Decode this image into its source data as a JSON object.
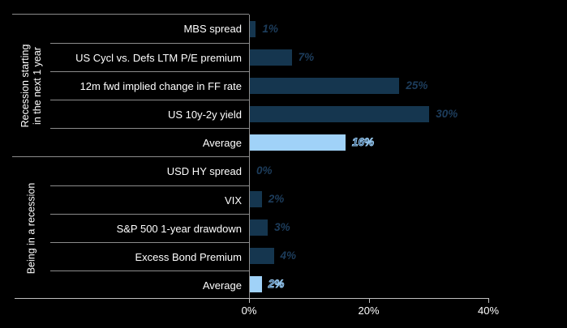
{
  "chart_data": {
    "type": "bar",
    "orientation": "horizontal",
    "title": "",
    "xlabel": "",
    "xlim": [
      0,
      40
    ],
    "grid": false,
    "legend": false,
    "x_ticks": [
      {
        "label": "0%",
        "value": 0
      },
      {
        "label": "20%",
        "value": 20
      },
      {
        "label": "40%",
        "value": 40
      }
    ],
    "colors": {
      "background": "#000000",
      "bar": "#15364F",
      "average_bar": "#A0D2F8",
      "value_label": "#1D3D5C",
      "average_value_fill": "#17365C",
      "average_value_stroke": "#9FD2F9",
      "separator_line": "#8C8C8C",
      "axis_line": "#BFBFBF",
      "label_text": "#FFFFFF"
    },
    "groups": [
      {
        "label": "Recession starting\nin the next 1 year",
        "rows": [
          {
            "label": "MBS spread",
            "value": 1,
            "display": "1%",
            "average": false
          },
          {
            "label": "US Cycl vs. Defs LTM P/E premium",
            "value": 7,
            "display": "7%",
            "average": false
          },
          {
            "label": "12m fwd implied change in FF rate",
            "value": 25,
            "display": "25%",
            "average": false
          },
          {
            "label": "US 10y-2y yield",
            "value": 30,
            "display": "30%",
            "average": false
          },
          {
            "label": "Average",
            "value": 16,
            "display": "16%",
            "average": true
          }
        ]
      },
      {
        "label": "Being in a recession",
        "rows": [
          {
            "label": "USD HY spread",
            "value": 0,
            "display": "0%",
            "average": false
          },
          {
            "label": "VIX",
            "value": 2,
            "display": "2%",
            "average": false
          },
          {
            "label": "S&P 500 1-year drawdown",
            "value": 3,
            "display": "3%",
            "average": false
          },
          {
            "label": "Excess Bond Premium",
            "value": 4,
            "display": "4%",
            "average": false
          },
          {
            "label": "Average",
            "value": 2,
            "display": "2%",
            "average": true
          }
        ]
      }
    ]
  }
}
